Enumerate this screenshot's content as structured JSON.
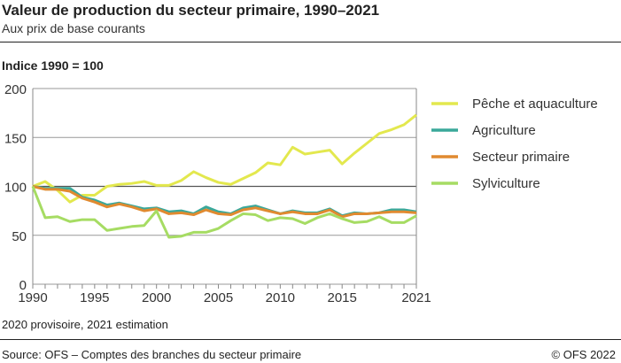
{
  "chart_data": {
    "type": "line",
    "title": "Valeur de production du secteur primaire, 1990–2021",
    "subtitle": "Aux prix de base courants",
    "ylabel": "Indice 1990 = 100",
    "ylim": [
      0,
      200
    ],
    "yticks": [
      0,
      50,
      100,
      150,
      200
    ],
    "xticks": [
      1990,
      1995,
      2000,
      2005,
      2010,
      2015,
      2021
    ],
    "grid": true,
    "legend_position": "right",
    "x": [
      1990,
      1991,
      1992,
      1993,
      1994,
      1995,
      1996,
      1997,
      1998,
      1999,
      2000,
      2001,
      2002,
      2003,
      2004,
      2005,
      2006,
      2007,
      2008,
      2009,
      2010,
      2011,
      2012,
      2013,
      2014,
      2015,
      2016,
      2017,
      2018,
      2019,
      2020,
      2021
    ],
    "series": [
      {
        "name": "Pêche et aquaculture",
        "color": "#e3e84e",
        "values": [
          100,
          105,
          96,
          84,
          91,
          91,
          100,
          102,
          103,
          105,
          101,
          101,
          106,
          115,
          109,
          104,
          102,
          108,
          114,
          124,
          122,
          140,
          133,
          135,
          137,
          123,
          134,
          144,
          154,
          158,
          163,
          173
        ]
      },
      {
        "name": "Agriculture",
        "color": "#3aa89a",
        "values": [
          100,
          98,
          98,
          98,
          89,
          86,
          81,
          83,
          80,
          77,
          78,
          74,
          75,
          72,
          79,
          74,
          72,
          78,
          80,
          76,
          72,
          75,
          73,
          73,
          77,
          70,
          73,
          72,
          73,
          76,
          76,
          74
        ]
      },
      {
        "name": "Secteur primaire",
        "color": "#e08a30",
        "values": [
          100,
          97,
          97,
          95,
          88,
          84,
          79,
          82,
          79,
          75,
          77,
          72,
          73,
          71,
          76,
          72,
          71,
          76,
          78,
          75,
          72,
          74,
          72,
          72,
          76,
          69,
          72,
          72,
          73,
          74,
          74,
          73
        ]
      },
      {
        "name": "Sylviculture",
        "color": "#a6dc63",
        "values": [
          100,
          68,
          69,
          64,
          66,
          66,
          55,
          57,
          59,
          60,
          75,
          48,
          49,
          53,
          53,
          57,
          65,
          72,
          71,
          65,
          68,
          67,
          62,
          68,
          72,
          67,
          63,
          64,
          69,
          63,
          63,
          70
        ]
      }
    ],
    "note": "2020 provisoire, 2021 estimation",
    "source": "Source: OFS – Comptes des branches du secteur primaire",
    "copyright": "© OFS 2022"
  }
}
